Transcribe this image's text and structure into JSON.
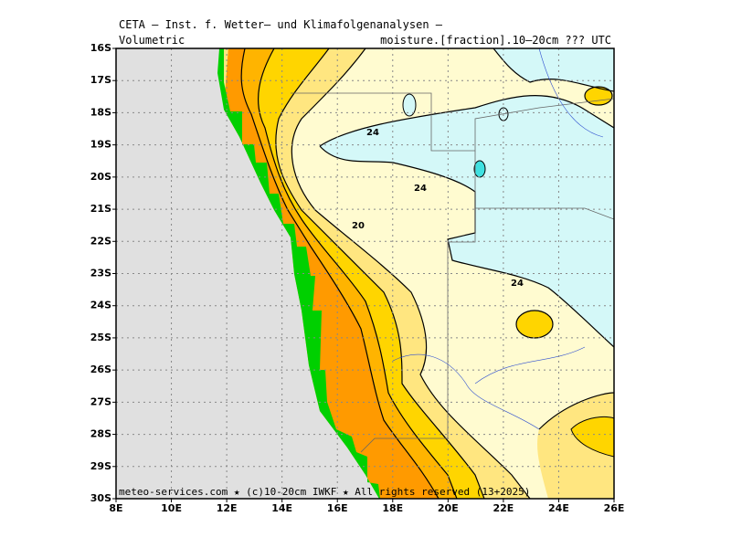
{
  "header": {
    "line1": "CETA — Inst. f. Wetter— und Klimafolgenanalysen —",
    "left": "Volumetric",
    "right": "moisture.[fraction].10–20cm ??? UTC"
  },
  "axes": {
    "lat_labels": [
      "16S",
      "17S",
      "18S",
      "19S",
      "20S",
      "21S",
      "22S",
      "23S",
      "24S",
      "25S",
      "26S",
      "27S",
      "28S",
      "29S",
      "30S"
    ],
    "lon_labels": [
      "8E",
      "10E",
      "12E",
      "14E",
      "16E",
      "18E",
      "20E",
      "22E",
      "24E",
      "26E"
    ]
  },
  "contour_labels": [
    "24",
    "24",
    "20",
    "24"
  ],
  "footer": "meteo-services.com ★ (c)10-20cm IWKF ★ All rights reserved (13+2025)"
}
